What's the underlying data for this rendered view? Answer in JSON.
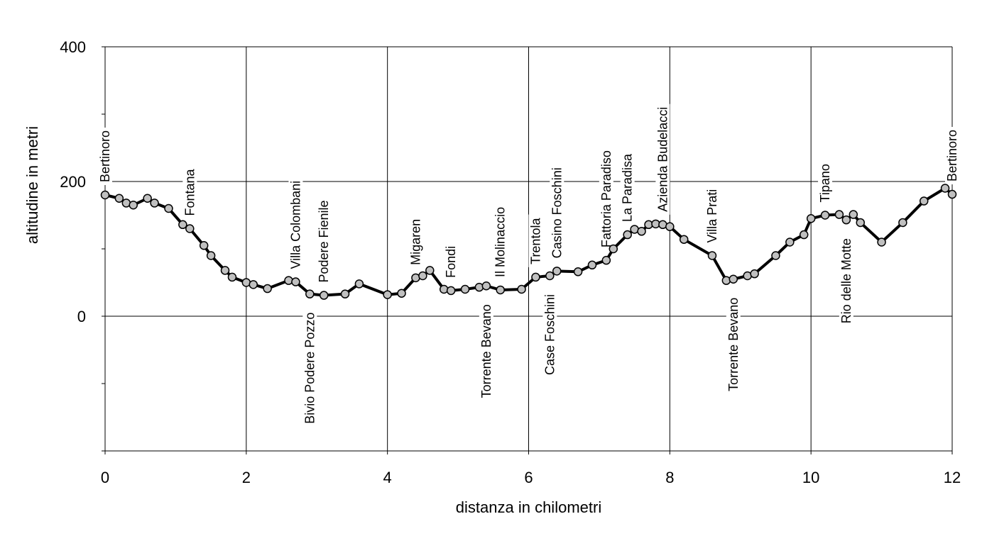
{
  "chart_data": {
    "type": "line",
    "title": "",
    "xlabel": "distanza in chilometri",
    "ylabel": "altitudine  in metri",
    "xlim": [
      0,
      12
    ],
    "ylim": [
      -200,
      400
    ],
    "xticks": [
      "0",
      "2",
      "4",
      "6",
      "8",
      "10",
      "12"
    ],
    "yticks": [
      "400",
      "200",
      "0"
    ],
    "grid": true,
    "series": [
      {
        "x": [
          0,
          0.2,
          0.3,
          0.4,
          0.6,
          0.7,
          0.9,
          1.1,
          1.2,
          1.4,
          1.5,
          1.7,
          1.8,
          2.0,
          2.1,
          2.3,
          2.6,
          2.7,
          2.9,
          3.1,
          3.4,
          3.6,
          4.0,
          4.2,
          4.4,
          4.5,
          4.6,
          4.8,
          4.9,
          5.1,
          5.3,
          5.4,
          5.6,
          5.9,
          6.1,
          6.3,
          6.4,
          6.7,
          6.9,
          7.1,
          7.2,
          7.4,
          7.5,
          7.6,
          7.7,
          7.8,
          7.9,
          8.0,
          8.2,
          8.6,
          8.8,
          8.9,
          9.1,
          9.2,
          9.5,
          9.7,
          9.9,
          10.0,
          10.2,
          10.4,
          10.5,
          10.6,
          10.7,
          11.0,
          11.3,
          11.6,
          11.9,
          12.0
        ],
        "y": [
          180,
          175,
          168,
          165,
          175,
          168,
          160,
          136,
          130,
          105,
          90,
          68,
          58,
          50,
          47,
          41,
          53,
          51,
          33,
          31,
          33,
          48,
          32,
          34,
          57,
          60,
          68,
          40,
          38,
          40,
          43,
          45,
          39,
          40,
          58,
          60,
          67,
          66,
          76,
          83,
          100,
          121,
          129,
          126,
          136,
          137,
          136,
          133,
          114,
          90,
          53,
          55,
          60,
          63,
          90,
          110,
          121,
          145,
          150,
          151,
          143,
          151,
          139,
          110,
          139,
          171,
          190,
          181
        ]
      }
    ],
    "annotations": [
      {
        "text": "Bertinoro",
        "x": 0.0,
        "y": 180,
        "side": "above"
      },
      {
        "text": "Fontana",
        "x": 1.2,
        "y": 130,
        "side": "above"
      },
      {
        "text": "Villa Colombani",
        "x": 2.7,
        "y": 51,
        "side": "above"
      },
      {
        "text": "Bivio Podere Pozzo",
        "x": 2.9,
        "y": 33,
        "side": "below"
      },
      {
        "text": "Podere Fienile",
        "x": 3.1,
        "y": 31,
        "side": "above"
      },
      {
        "text": "Migaren",
        "x": 4.4,
        "y": 57,
        "side": "above"
      },
      {
        "text": "Fondi",
        "x": 4.9,
        "y": 38,
        "side": "above"
      },
      {
        "text": "Torrente Bevano",
        "x": 5.4,
        "y": 45,
        "side": "below"
      },
      {
        "text": "Il Molinaccio",
        "x": 5.6,
        "y": 39,
        "side": "above"
      },
      {
        "text": "Trentola",
        "x": 6.1,
        "y": 58,
        "side": "above"
      },
      {
        "text": "Case Foschini",
        "x": 6.3,
        "y": 60,
        "side": "below"
      },
      {
        "text": "Casino Foschini",
        "x": 6.4,
        "y": 67,
        "side": "above"
      },
      {
        "text": "Fattoria Paradiso",
        "x": 7.1,
        "y": 83,
        "side": "above"
      },
      {
        "text": "La Paradisa",
        "x": 7.4,
        "y": 121,
        "side": "above"
      },
      {
        "text": "Azienda Budelacci",
        "x": 7.9,
        "y": 136,
        "side": "above"
      },
      {
        "text": "Villa Prati",
        "x": 8.6,
        "y": 90,
        "side": "above"
      },
      {
        "text": "Torrente Bevano",
        "x": 8.9,
        "y": 55,
        "side": "below"
      },
      {
        "text": "Tipano",
        "x": 10.2,
        "y": 150,
        "side": "above"
      },
      {
        "text": "Rio delle Motte",
        "x": 10.5,
        "y": 143,
        "side": "below"
      },
      {
        "text": "Bertinoro",
        "x": 12.0,
        "y": 181,
        "side": "above"
      }
    ],
    "colors": {
      "line": "#000000",
      "marker": "#c0c0c0",
      "grid": "#000000"
    }
  }
}
